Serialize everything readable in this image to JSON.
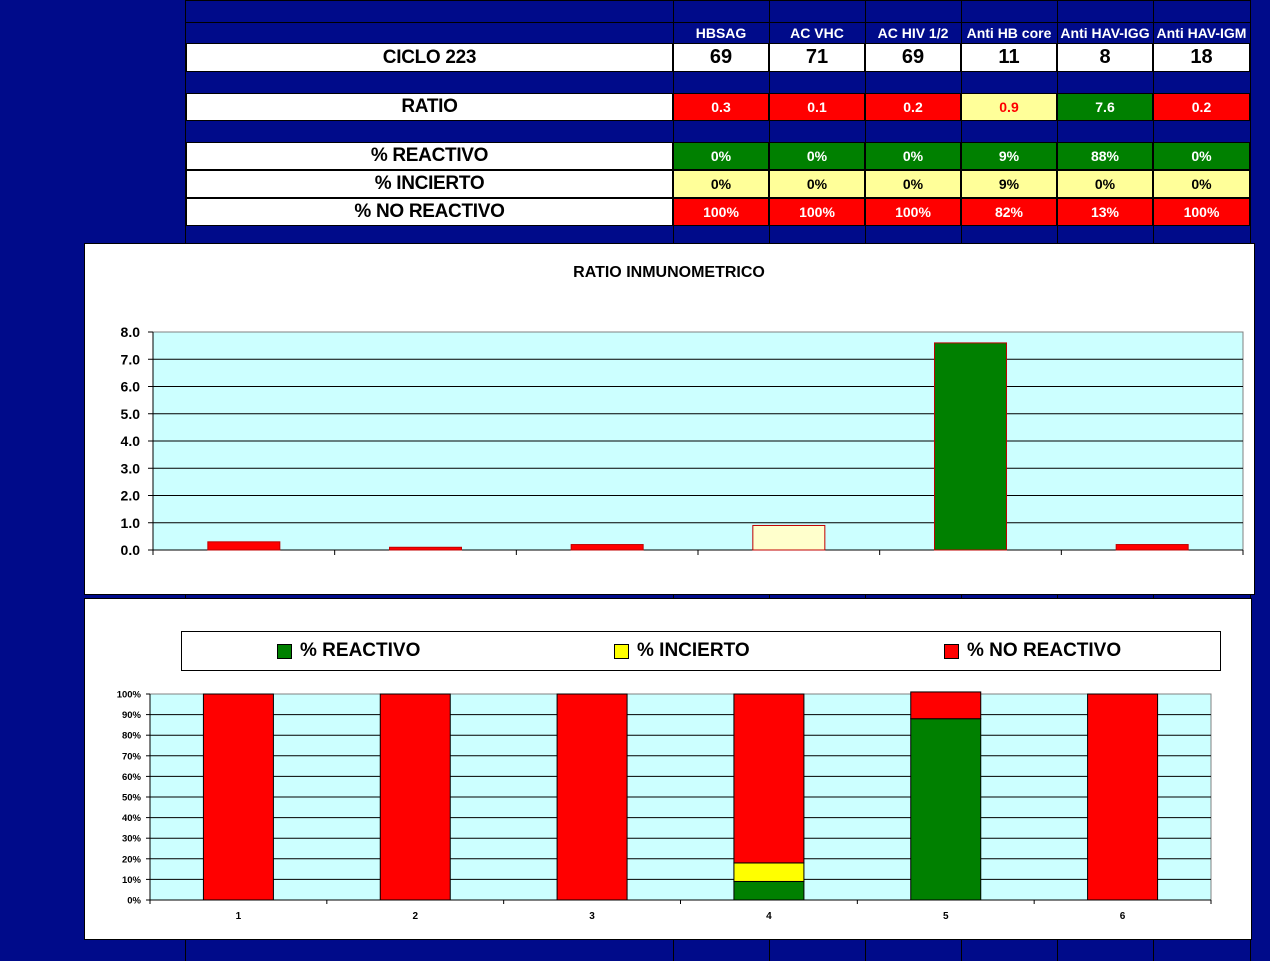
{
  "table": {
    "columns": [
      "HBSAG",
      "AC VHC",
      "AC HIV 1/2",
      "Anti HB core",
      "Anti HAV-IGG",
      "Anti HAV-IGM"
    ],
    "ciclo": {
      "label": "CICLO 223",
      "values": [
        "69",
        "71",
        "69",
        "11",
        "8",
        "18"
      ]
    },
    "ratio": {
      "label": "RATIO",
      "values": [
        "0.3",
        "0.1",
        "0.2",
        "0.9",
        "7.6",
        "0.2"
      ],
      "colors": [
        "red",
        "red",
        "red",
        "yellow-red",
        "green",
        "red"
      ]
    },
    "reactivo": {
      "label": "% REACTIVO",
      "values": [
        "0%",
        "0%",
        "0%",
        "9%",
        "88%",
        "0%"
      ]
    },
    "incierto": {
      "label": "% INCIERTO",
      "values": [
        "0%",
        "0%",
        "0%",
        "9%",
        "0%",
        "0%"
      ]
    },
    "no_reactivo": {
      "label": "% NO REACTIVO",
      "values": [
        "100%",
        "100%",
        "100%",
        "82%",
        "13%",
        "100%"
      ]
    }
  },
  "colors": {
    "background": "#000b8a",
    "red": "#ff0000",
    "green": "#008000",
    "yellow": "#ffff99",
    "plot_bg": "#ccffff"
  },
  "chart_data": [
    {
      "type": "bar",
      "title": "RATIO INMUNOMETRICO",
      "categories": [
        "",
        "",
        "",
        "",
        "",
        ""
      ],
      "values": [
        0.3,
        0.1,
        0.2,
        0.9,
        7.6,
        0.2
      ],
      "bar_colors": [
        "#ff0000",
        "#ff0000",
        "#ff0000",
        "#ffffcc",
        "#008000",
        "#ff0000"
      ],
      "ylim": [
        0,
        8
      ],
      "yticks": [
        "0.0",
        "1.0",
        "2.0",
        "3.0",
        "4.0",
        "5.0",
        "6.0",
        "7.0",
        "8.0"
      ],
      "grid": true
    },
    {
      "type": "bar",
      "stacked": true,
      "categories": [
        "1",
        "2",
        "3",
        "4",
        "5",
        "6"
      ],
      "series": [
        {
          "name": "% REACTIVO",
          "color": "#008000",
          "values": [
            0,
            0,
            0,
            9,
            88,
            0
          ]
        },
        {
          "name": "% INCIERTO",
          "color": "#ffff00",
          "values": [
            0,
            0,
            0,
            9,
            0,
            0
          ]
        },
        {
          "name": "% NO REACTIVO",
          "color": "#ff0000",
          "values": [
            100,
            100,
            100,
            82,
            13,
            100
          ]
        }
      ],
      "ylim": [
        0,
        100
      ],
      "yticks": [
        "0%",
        "10%",
        "20%",
        "30%",
        "40%",
        "50%",
        "60%",
        "70%",
        "80%",
        "90%",
        "100%"
      ],
      "legend": "top",
      "grid": true
    }
  ]
}
